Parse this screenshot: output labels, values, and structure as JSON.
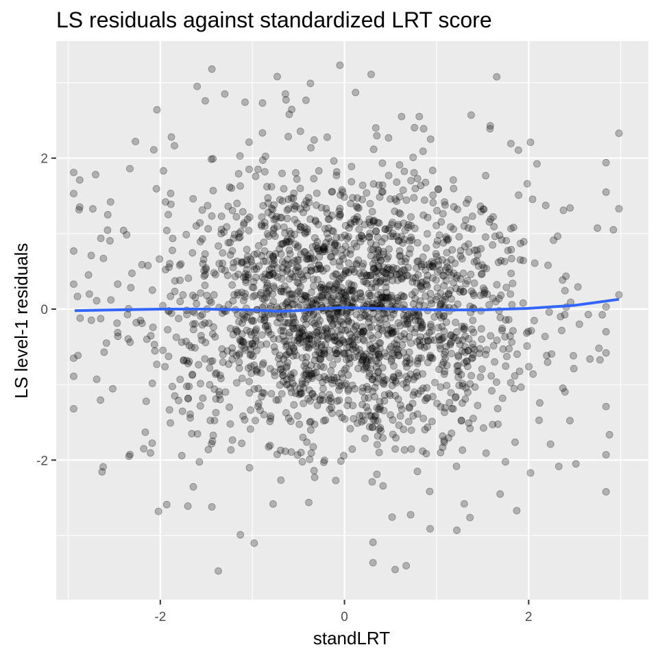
{
  "chart_data": {
    "type": "scatter",
    "title": "LS residuals against standardized LRT score",
    "xlabel": "standLRT",
    "ylabel": "LS level-1 residuals",
    "xlim": [
      -3.13,
      3.3
    ],
    "ylim": [
      -3.85,
      3.55
    ],
    "x_ticks": [
      -2,
      0,
      2
    ],
    "x_tick_labels": [
      "-2",
      "0",
      "2"
    ],
    "y_ticks": [
      -2,
      0,
      2
    ],
    "y_tick_labels": [
      "-2",
      "0",
      "2"
    ],
    "grid": true,
    "legend": "none",
    "point_color": "#000000",
    "point_alpha": 0.25,
    "smooth_color": "#3366ff",
    "background_color": "#ebebeb",
    "grid_color": "#ffffff",
    "point_count": 2200,
    "points": [
      [
        -2.94,
        1.81
      ],
      [
        -2.94,
        1.53
      ],
      [
        -2.94,
        0.77
      ],
      [
        -2.94,
        0.33
      ],
      [
        -2.94,
        -0.65
      ],
      [
        -2.94,
        -0.89
      ],
      [
        -2.94,
        -1.32
      ],
      [
        -2.75,
        0.71
      ],
      [
        -2.62,
        -2.09
      ],
      [
        -2.57,
        1.25
      ],
      [
        -2.54,
        1.42
      ],
      [
        -2.33,
        1.86
      ],
      [
        -2.27,
        2.22
      ],
      [
        -2.07,
        2.11
      ],
      [
        -1.88,
        2.28
      ],
      [
        -1.6,
        2.95
      ],
      [
        -1.44,
        3.18
      ],
      [
        -1.3,
        2.85
      ],
      [
        -1.08,
        2.74
      ],
      [
        -0.89,
        2.73
      ],
      [
        -0.73,
        3.08
      ],
      [
        -0.6,
        2.58
      ],
      [
        -0.37,
        2.99
      ],
      [
        -0.05,
        3.23
      ],
      [
        0.12,
        2.87
      ],
      [
        0.29,
        3.11
      ],
      [
        0.62,
        2.55
      ],
      [
        0.86,
        2.39
      ],
      [
        1.58,
        2.39
      ],
      [
        2.02,
        2.21
      ],
      [
        2.84,
        1.94
      ],
      [
        2.98,
        2.33
      ],
      [
        2.98,
        1.33
      ],
      [
        2.84,
        1.55
      ],
      [
        2.92,
        1.05
      ],
      [
        2.98,
        0.19
      ],
      [
        2.84,
        0.03
      ],
      [
        2.84,
        -0.3
      ],
      [
        2.84,
        -0.58
      ],
      [
        2.84,
        -1.29
      ],
      [
        2.84,
        -1.93
      ],
      [
        2.84,
        -2.42
      ],
      [
        2.02,
        -2.17
      ],
      [
        1.87,
        -2.67
      ],
      [
        1.69,
        -2.45
      ],
      [
        1.3,
        -2.58
      ],
      [
        1.22,
        -2.93
      ],
      [
        0.93,
        -2.91
      ],
      [
        0.67,
        -3.4
      ],
      [
        0.31,
        -3.09
      ],
      [
        0.31,
        -3.36
      ],
      [
        0.55,
        -3.45
      ],
      [
        -0.98,
        -3.1
      ],
      [
        -1.13,
        -2.99
      ],
      [
        -1.37,
        -3.47
      ],
      [
        -1.7,
        -2.61
      ],
      [
        -1.44,
        -2.62
      ],
      [
        -2.02,
        -2.68
      ],
      [
        -1.93,
        -2.59
      ],
      [
        -2.18,
        -1.85
      ],
      [
        -2.34,
        -1.95
      ],
      [
        -2.69,
        -0.93
      ],
      [
        -2.61,
        -0.57
      ],
      [
        -2.87,
        -0.12
      ],
      [
        -2.77,
        0.2
      ]
    ],
    "smooth": {
      "x": [
        -2.93,
        -2.5,
        -2.0,
        -1.5,
        -1.0,
        -0.7,
        -0.5,
        -0.2,
        0.0,
        0.3,
        0.6,
        1.0,
        1.5,
        2.0,
        2.5,
        2.98
      ],
      "y": [
        -0.02,
        -0.01,
        0.0,
        0.0,
        -0.01,
        -0.03,
        -0.02,
        0.01,
        0.02,
        0.01,
        0.0,
        -0.01,
        -0.01,
        0.01,
        0.05,
        0.13
      ]
    }
  }
}
